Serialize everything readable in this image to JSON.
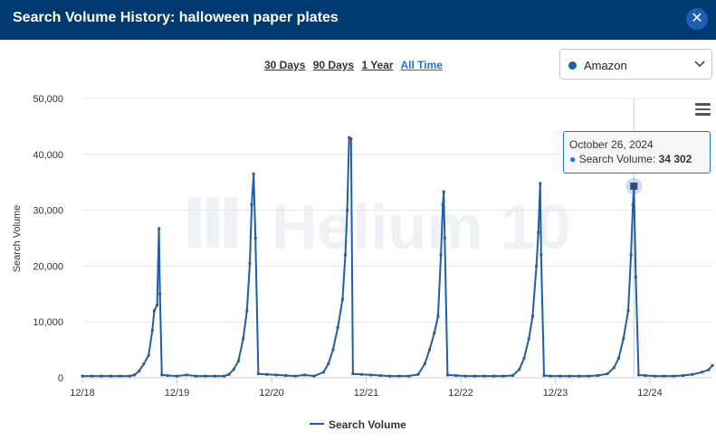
{
  "header": {
    "title": "Search Volume History: halloween paper plates"
  },
  "ranges": [
    {
      "label": "30 Days",
      "active": false
    },
    {
      "label": "90 Days",
      "active": false
    },
    {
      "label": "1 Year",
      "active": false
    },
    {
      "label": "All Time",
      "active": true
    }
  ],
  "marketplace": {
    "selected": "Amazon",
    "color": "#1a5fb4"
  },
  "watermark": "Helium 10",
  "tooltip": {
    "date": "October 26, 2024",
    "series": "Search Volume",
    "value": "34 302"
  },
  "colors": {
    "series": "#1a5fb4",
    "marker": "#4a5a6a",
    "header": "#003a70",
    "accent": "#1a73e8"
  },
  "chart_data": {
    "type": "line",
    "title": "",
    "xlabel": "",
    "ylabel": "Search Volume",
    "ylim": [
      0,
      50000
    ],
    "yticks": [
      0,
      10000,
      20000,
      30000,
      40000,
      50000
    ],
    "ytick_labels": [
      "0",
      "10,000",
      "20,000",
      "30,000",
      "40,000",
      "50,000"
    ],
    "xtick_labels": [
      "12/18",
      "12/19",
      "12/20",
      "12/21",
      "12/22",
      "12/23",
      "12/24"
    ],
    "x_unit": "year starting Dec 2018",
    "grid": true,
    "legend": "bottom",
    "series": [
      {
        "name": "Search Volume",
        "points": [
          [
            0.0,
            300
          ],
          [
            0.1,
            300
          ],
          [
            0.2,
            300
          ],
          [
            0.3,
            300
          ],
          [
            0.4,
            300
          ],
          [
            0.5,
            300
          ],
          [
            0.55,
            500
          ],
          [
            0.6,
            1200
          ],
          [
            0.65,
            2500
          ],
          [
            0.7,
            4000
          ],
          [
            0.74,
            8500
          ],
          [
            0.76,
            12000
          ],
          [
            0.79,
            13000
          ],
          [
            0.81,
            26700
          ],
          [
            0.82,
            15000
          ],
          [
            0.84,
            500
          ],
          [
            0.9,
            400
          ],
          [
            1.0,
            300
          ],
          [
            1.1,
            500
          ],
          [
            1.2,
            300
          ],
          [
            1.3,
            300
          ],
          [
            1.4,
            300
          ],
          [
            1.5,
            300
          ],
          [
            1.55,
            600
          ],
          [
            1.6,
            1500
          ],
          [
            1.65,
            3000
          ],
          [
            1.7,
            7000
          ],
          [
            1.74,
            12000
          ],
          [
            1.77,
            20500
          ],
          [
            1.79,
            31000
          ],
          [
            1.81,
            36500
          ],
          [
            1.83,
            25000
          ],
          [
            1.86,
            700
          ],
          [
            1.95,
            600
          ],
          [
            2.05,
            500
          ],
          [
            2.15,
            400
          ],
          [
            2.25,
            300
          ],
          [
            2.35,
            500
          ],
          [
            2.45,
            300
          ],
          [
            2.55,
            1000
          ],
          [
            2.6,
            2500
          ],
          [
            2.65,
            5000
          ],
          [
            2.7,
            9000
          ],
          [
            2.75,
            14000
          ],
          [
            2.78,
            22000
          ],
          [
            2.8,
            30000
          ],
          [
            2.82,
            43000
          ],
          [
            2.84,
            42800
          ],
          [
            2.86,
            700
          ],
          [
            2.95,
            600
          ],
          [
            3.05,
            500
          ],
          [
            3.15,
            400
          ],
          [
            3.25,
            300
          ],
          [
            3.35,
            300
          ],
          [
            3.45,
            300
          ],
          [
            3.55,
            600
          ],
          [
            3.62,
            2500
          ],
          [
            3.67,
            5000
          ],
          [
            3.72,
            8000
          ],
          [
            3.76,
            11000
          ],
          [
            3.79,
            22000
          ],
          [
            3.81,
            31000
          ],
          [
            3.82,
            33300
          ],
          [
            3.83,
            25000
          ],
          [
            3.86,
            500
          ],
          [
            3.95,
            400
          ],
          [
            4.05,
            300
          ],
          [
            4.15,
            300
          ],
          [
            4.25,
            300
          ],
          [
            4.35,
            300
          ],
          [
            4.45,
            300
          ],
          [
            4.55,
            400
          ],
          [
            4.62,
            1500
          ],
          [
            4.67,
            3500
          ],
          [
            4.72,
            7000
          ],
          [
            4.76,
            11000
          ],
          [
            4.8,
            20000
          ],
          [
            4.82,
            26000
          ],
          [
            4.84,
            34800
          ],
          [
            4.85,
            22000
          ],
          [
            4.88,
            400
          ],
          [
            4.95,
            300
          ],
          [
            5.05,
            300
          ],
          [
            5.15,
            300
          ],
          [
            5.25,
            300
          ],
          [
            5.35,
            300
          ],
          [
            5.45,
            400
          ],
          [
            5.55,
            700
          ],
          [
            5.62,
            1800
          ],
          [
            5.67,
            3500
          ],
          [
            5.72,
            7000
          ],
          [
            5.77,
            12000
          ],
          [
            5.8,
            22000
          ],
          [
            5.82,
            31000
          ],
          [
            5.83,
            34302
          ],
          [
            5.85,
            18000
          ],
          [
            5.88,
            500
          ],
          [
            5.95,
            400
          ],
          [
            6.05,
            300
          ],
          [
            6.15,
            300
          ],
          [
            6.25,
            300
          ],
          [
            6.35,
            400
          ],
          [
            6.45,
            600
          ],
          [
            6.55,
            1000
          ],
          [
            6.62,
            1400
          ],
          [
            6.66,
            2200
          ]
        ]
      }
    ]
  },
  "legend": {
    "label": "Search Volume"
  }
}
